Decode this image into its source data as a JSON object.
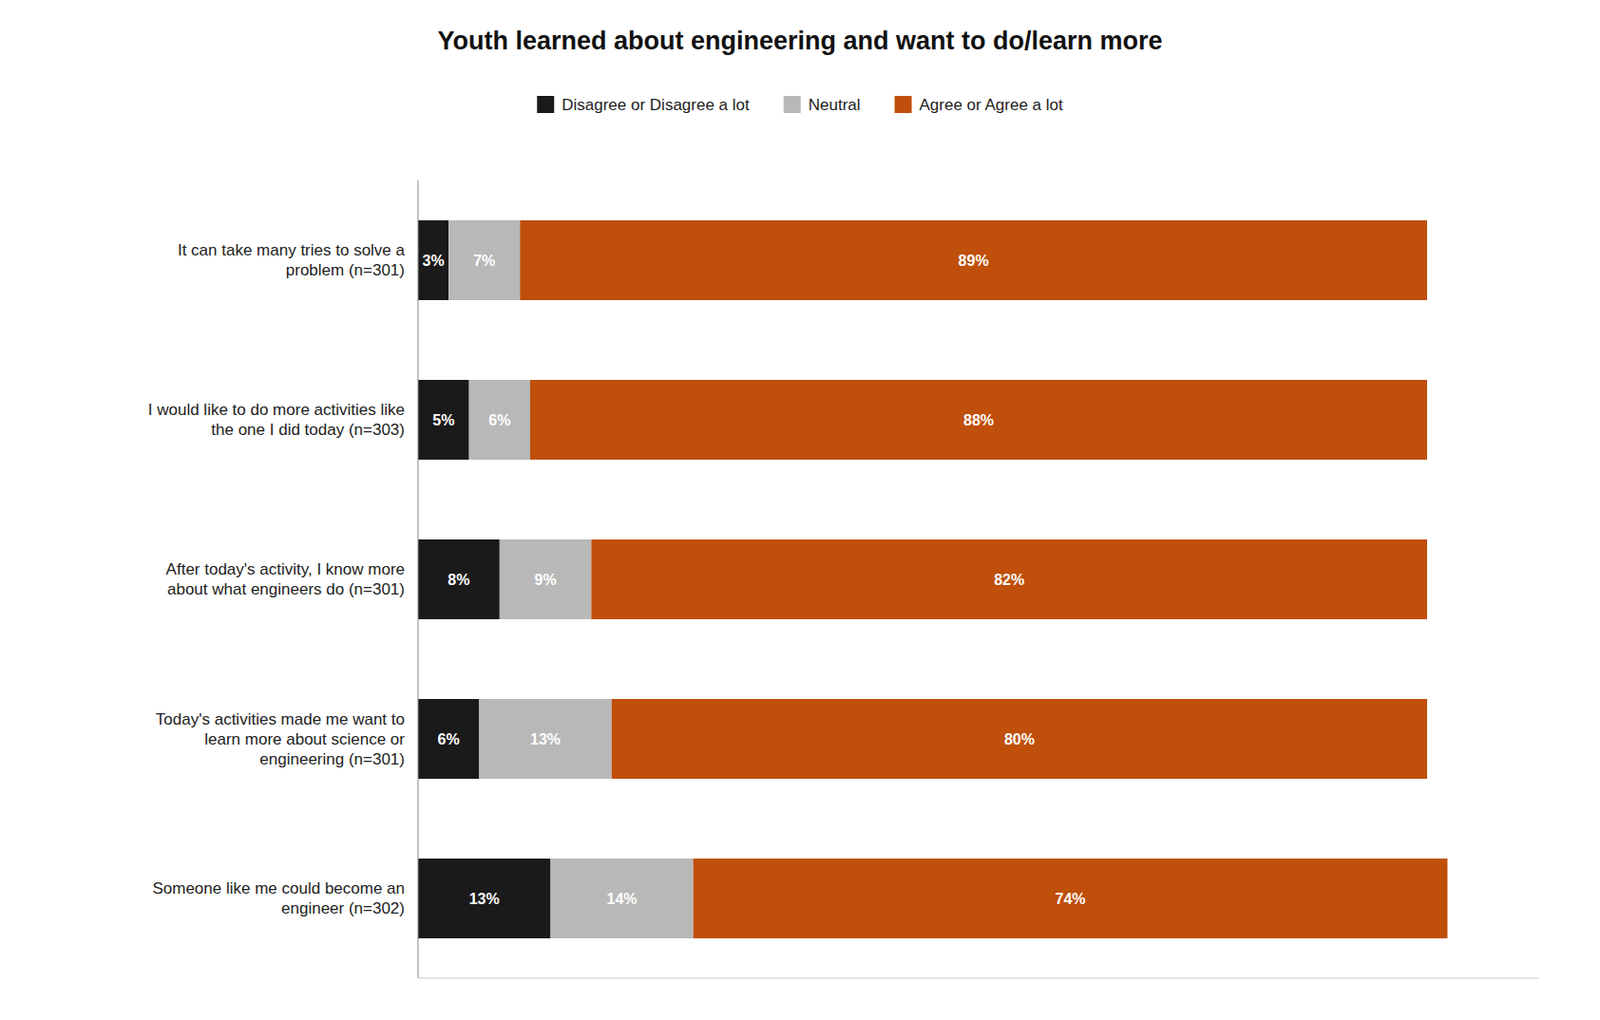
{
  "chart_data": {
    "type": "bar",
    "orientation": "horizontal",
    "stacked": true,
    "title": "Youth learned about engineering and want to do/learn more",
    "categories": [
      "It can take many tries to solve a\nproblem (n=301)",
      "I would like to do more activities like\nthe one I did today (n=303)",
      "After today's activity, I know more\nabout what engineers do (n=301)",
      "Today's activities made me want to\nlearn more about science or\nengineering (n=301)",
      "Someone like me could become an\nengineer (n=302)"
    ],
    "series": [
      {
        "name": "Disagree or Disagree a lot",
        "color": "#1a1a1a",
        "values": [
          3,
          5,
          8,
          6,
          13
        ],
        "value_labels": [
          "3%",
          "5%",
          "8%",
          "6%",
          "13%"
        ]
      },
      {
        "name": "Neutral",
        "color": "#b8b8b8",
        "values": [
          7,
          6,
          9,
          13,
          14
        ],
        "value_labels": [
          "7%",
          "6%",
          "9%",
          "13%",
          "14%"
        ]
      },
      {
        "name": "Agree or Agree a lot",
        "color": "#bf4f0a",
        "values": [
          89,
          88,
          82,
          80,
          74
        ],
        "value_labels": [
          "89%",
          "88%",
          "82%",
          "80%",
          "74%"
        ]
      }
    ],
    "xlim": [
      0,
      110
    ],
    "tick_labels": "y",
    "grid": false,
    "legend": "upper center",
    "data_labels": true
  }
}
